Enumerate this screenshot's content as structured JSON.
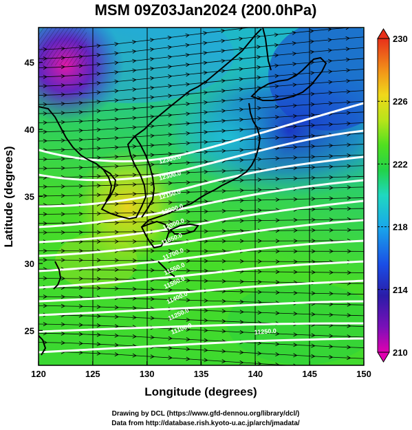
{
  "title": "MSM 09Z03Jan2024 (200.0hPa)",
  "xlabel": "Longitude (degrees)",
  "ylabel": "Latitude  (degrees)",
  "credit_line1": "Drawing by DCL (https://www.gfd-dennou.org/library/dcl/)",
  "credit_line2": "Data from http://database.rish.kyoto-u.ac.jp/arch/jmadata/",
  "map": {
    "lon_range": [
      120,
      150
    ],
    "lat_range": [
      22.4,
      47.6
    ],
    "lon_ticks": [
      "120",
      "125",
      "130",
      "135",
      "140",
      "145",
      "150"
    ],
    "lon_tick_values": [
      120,
      125,
      130,
      135,
      140,
      145,
      150
    ],
    "lat_ticks": [
      "25",
      "30",
      "35",
      "40",
      "45"
    ],
    "lat_tick_values": [
      25,
      30,
      35,
      40,
      45
    ]
  },
  "colorbar": {
    "min": 210,
    "max": 230,
    "tick_labels": [
      "230",
      "226",
      "222",
      "218",
      "214",
      "210"
    ],
    "tick_values": [
      230,
      226,
      222,
      218,
      214,
      210
    ],
    "colors": [
      "#d400c8",
      "#3a1fb0",
      "#1a4fe0",
      "#19a6e8",
      "#1fd6c8",
      "#22cf55",
      "#2fe020",
      "#9ce019",
      "#e6e61a",
      "#f5b019",
      "#f07a19",
      "#e8361a"
    ]
  },
  "contour_labels": [
    "12300.0",
    "12300.0",
    "12150.0",
    "12000.0",
    "12000.0",
    "11850.0",
    "11700.0",
    "11550.0",
    "11550.0",
    "11400.0",
    "11250.0",
    "11250.0",
    "11100.0"
  ]
}
